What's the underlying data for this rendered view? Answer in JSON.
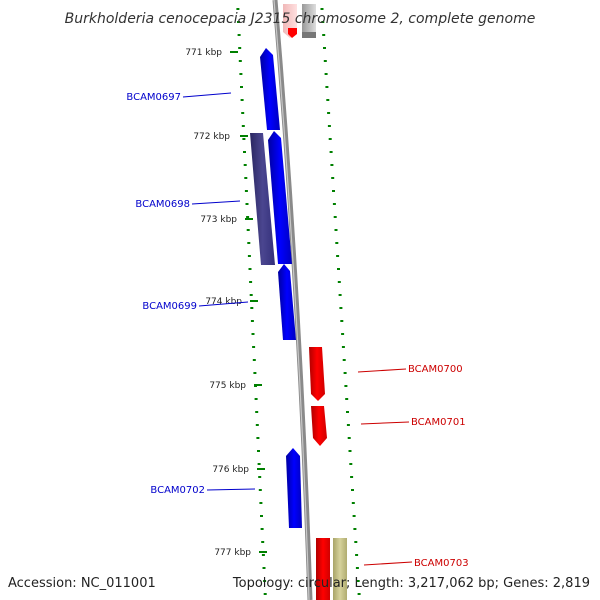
{
  "title": "Burkholderia cenocepacia J2315 chromosome 2, complete genome",
  "footer": {
    "accession": "Accession: NC_011001",
    "summary": "Topology: circular; Length: 3,217,062 bp; Genes: 2,819"
  },
  "colors": {
    "forward": "#0000ff",
    "reverse": "#ff0000",
    "overlap_dark": "#3b3680",
    "pseudo": "#c8c48a",
    "tick": "#008000",
    "backbone": "#888888"
  },
  "tick_labels": [
    "771 kbp",
    "772 kbp",
    "773 kbp",
    "774 kbp",
    "775 kbp",
    "776 kbp",
    "777 kbp"
  ],
  "gene_labels": [
    {
      "text": "BCAM0697",
      "strand": "forward"
    },
    {
      "text": "BCAM0698",
      "strand": "forward"
    },
    {
      "text": "BCAM0699",
      "strand": "forward"
    },
    {
      "text": "BCAM0700",
      "strand": "reverse"
    },
    {
      "text": "BCAM0701",
      "strand": "reverse"
    },
    {
      "text": "BCAM0702",
      "strand": "forward"
    },
    {
      "text": "BCAM0703",
      "strand": "reverse"
    }
  ]
}
